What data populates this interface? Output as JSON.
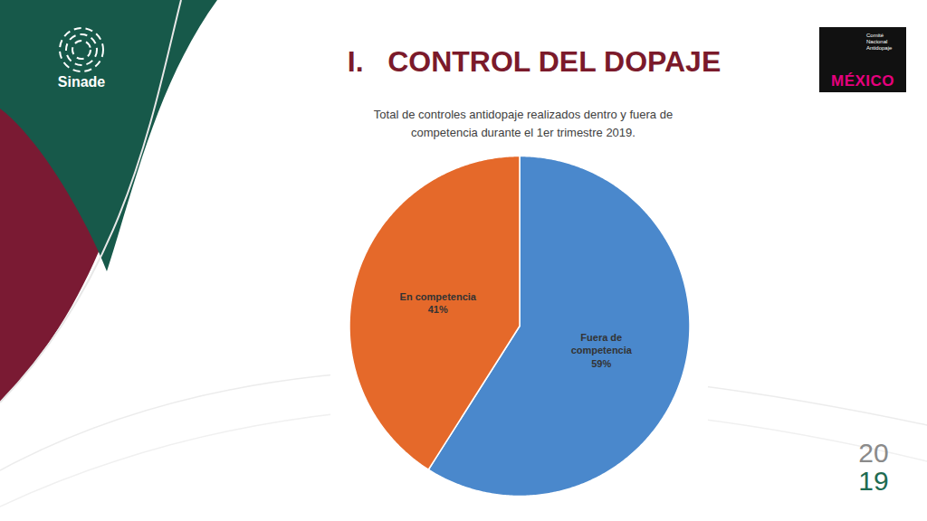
{
  "slide": {
    "section": "I.",
    "heading": "CONTROL DEL DOPAJE",
    "logo_left": "Sinade",
    "logo_right": [
      "Comité",
      "Nacional",
      "Antidopaje"
    ],
    "logo_right_word": "MÉXICO",
    "year": [
      "20",
      "19"
    ]
  },
  "chart_data": {
    "type": "pie",
    "title": "Total de controles antidopaje realizados dentro y fuera de competencia durante el 1er trimestre 2019.",
    "categories": [
      "Fuera de competencia",
      "En competencia"
    ],
    "values": [
      59,
      41
    ],
    "value_labels": [
      "59%",
      "41%"
    ],
    "colors": [
      "#4a88cc",
      "#e5692a"
    ],
    "data_labels": true
  }
}
